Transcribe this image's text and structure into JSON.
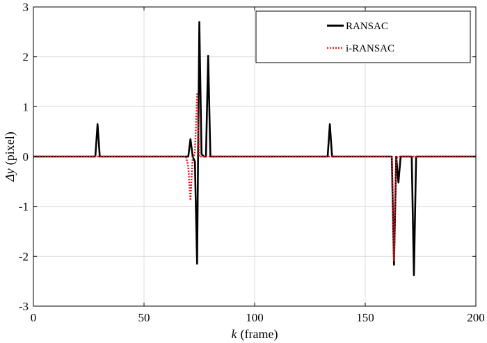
{
  "chart_data": {
    "type": "line",
    "xlabel": "(frame)",
    "xlabel_symbol": "k",
    "ylabel": "(pixel)",
    "ylabel_symbol": "Δy",
    "xlim": [
      0,
      200
    ],
    "ylim": [
      -3,
      3
    ],
    "x_ticks": [
      0,
      50,
      100,
      150,
      200
    ],
    "y_ticks": [
      -3,
      -2,
      -1,
      0,
      1,
      2,
      3
    ],
    "x_tick_labels": [
      "0",
      "50",
      "100",
      "150",
      "200"
    ],
    "y_tick_labels": [
      "-3",
      "-2",
      "-1",
      "0",
      "1",
      "2",
      "3"
    ],
    "grid": true,
    "legend_position": "top-right",
    "series": [
      {
        "name": "RANSAC",
        "color": "#000000",
        "style": "solid",
        "points": [
          [
            0,
            0
          ],
          [
            28,
            0
          ],
          [
            29,
            0.65
          ],
          [
            30,
            0
          ],
          [
            70,
            0
          ],
          [
            71,
            0.35
          ],
          [
            72,
            0
          ],
          [
            73,
            -0.1
          ],
          [
            74,
            -2.15
          ],
          [
            75,
            2.7
          ],
          [
            76,
            0.05
          ],
          [
            77,
            0
          ],
          [
            78,
            0
          ],
          [
            79,
            2.02
          ],
          [
            80,
            0
          ],
          [
            133,
            0
          ],
          [
            134,
            0.65
          ],
          [
            135,
            0
          ],
          [
            162,
            0
          ],
          [
            163,
            -2.17
          ],
          [
            164,
            0
          ],
          [
            165,
            -0.52
          ],
          [
            166,
            0
          ],
          [
            171,
            0
          ],
          [
            172,
            -2.38
          ],
          [
            173,
            0
          ],
          [
            200,
            0
          ]
        ]
      },
      {
        "name": "i-RANSAC",
        "color": "#e0191c",
        "style": "dotted",
        "points": [
          [
            0,
            0
          ],
          [
            69,
            0
          ],
          [
            70,
            -0.2
          ],
          [
            71,
            -0.88
          ],
          [
            72,
            0
          ],
          [
            73,
            0.05
          ],
          [
            74,
            1.25
          ],
          [
            75,
            0
          ],
          [
            162,
            0
          ],
          [
            163,
            -2.08
          ],
          [
            164,
            -0.03
          ],
          [
            165,
            0
          ],
          [
            200,
            0
          ]
        ]
      }
    ]
  }
}
